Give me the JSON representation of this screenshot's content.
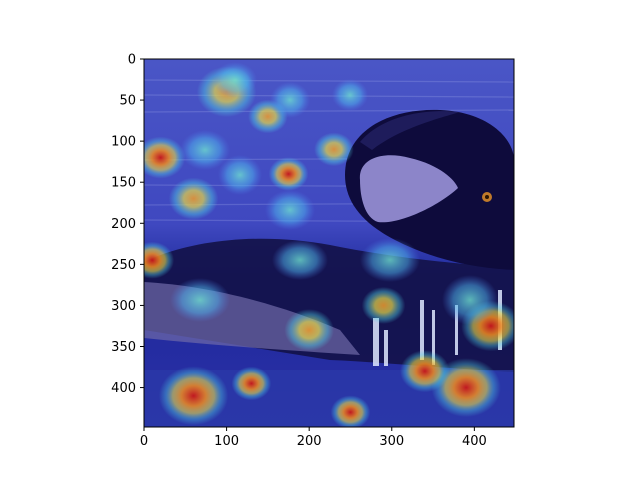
{
  "chart_data": {
    "type": "heatmap",
    "description_overlay": "jet colormap saliency heatmap overlaid on photograph",
    "xlim": [
      0,
      448
    ],
    "ylim": [
      448,
      0
    ],
    "x_ticks": [
      0,
      100,
      200,
      300,
      400
    ],
    "y_ticks": [
      0,
      50,
      100,
      150,
      200,
      250,
      300,
      350,
      400
    ],
    "x_tick_labels": [
      "0",
      "100",
      "200",
      "300",
      "400"
    ],
    "y_tick_labels": [
      "0",
      "50",
      "100",
      "150",
      "200",
      "250",
      "300",
      "350",
      "400"
    ],
    "colormap": "jet",
    "colors": {
      "background": "#3a3fb8",
      "cold": "#1a1a9a",
      "cyan": "#4fd6e6",
      "yellow": "#e6d94a",
      "red": "#d93a2a",
      "water_light": "#7f86d9",
      "bird_dark": "#0d0a3a",
      "white_patch": "#8c85c9"
    },
    "hotspots": [
      {
        "x": 20,
        "y": 120,
        "r": 25,
        "level": 0.95
      },
      {
        "x": 10,
        "y": 245,
        "r": 22,
        "level": 0.9
      },
      {
        "x": 150,
        "y": 70,
        "r": 20,
        "level": 0.8
      },
      {
        "x": 175,
        "y": 140,
        "r": 20,
        "level": 0.85
      },
      {
        "x": 290,
        "y": 300,
        "r": 22,
        "level": 0.8
      },
      {
        "x": 420,
        "y": 325,
        "r": 30,
        "level": 0.95
      },
      {
        "x": 390,
        "y": 400,
        "r": 35,
        "level": 1.0
      },
      {
        "x": 60,
        "y": 410,
        "r": 35,
        "level": 0.9
      },
      {
        "x": 130,
        "y": 395,
        "r": 20,
        "level": 0.85
      },
      {
        "x": 250,
        "y": 430,
        "r": 20,
        "level": 0.85
      },
      {
        "x": 340,
        "y": 380,
        "r": 25,
        "level": 0.85
      },
      {
        "x": 100,
        "y": 40,
        "r": 30,
        "level": 0.55
      },
      {
        "x": 60,
        "y": 170,
        "r": 25,
        "level": 0.6
      },
      {
        "x": 230,
        "y": 110,
        "r": 20,
        "level": 0.6
      },
      {
        "x": 200,
        "y": 330,
        "r": 25,
        "level": 0.6
      }
    ]
  }
}
